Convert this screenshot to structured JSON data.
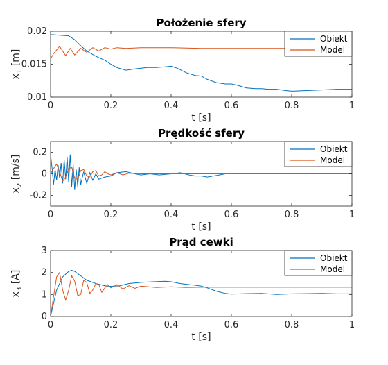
{
  "chart_data": [
    {
      "type": "line",
      "title": "Położenie sfery",
      "xlabel": "t [s]",
      "ylabel": "x",
      "ylabel_sub": "1",
      "ylabel_unit": " [m]",
      "xlim": [
        0,
        1
      ],
      "ylim": [
        0.01,
        0.02
      ],
      "xticks": [
        0,
        0.2,
        0.4,
        0.6,
        0.8,
        1
      ],
      "xtick_labels": [
        "0",
        "0.2",
        "0.4",
        "0.6",
        "0.8",
        "1"
      ],
      "yticks": [
        0.01,
        0.015,
        0.02
      ],
      "ytick_labels": [
        "0.01",
        "0.015",
        "0.02"
      ],
      "grid": false,
      "legend_position": "top-right",
      "series": [
        {
          "name": "Obiekt",
          "color": "#0072BD",
          "x": [
            0,
            0.03,
            0.06,
            0.08,
            0.1,
            0.12,
            0.15,
            0.18,
            0.2,
            0.22,
            0.25,
            0.28,
            0.32,
            0.35,
            0.38,
            0.4,
            0.42,
            0.45,
            0.48,
            0.5,
            0.52,
            0.55,
            0.58,
            0.6,
            0.62,
            0.65,
            0.68,
            0.7,
            0.72,
            0.75,
            0.78,
            0.8,
            0.85,
            0.9,
            0.95,
            1.0
          ],
          "y": [
            0.0195,
            0.0194,
            0.0193,
            0.0187,
            0.0178,
            0.017,
            0.0162,
            0.0156,
            0.015,
            0.0145,
            0.0141,
            0.0143,
            0.0145,
            0.0145,
            0.0146,
            0.0147,
            0.0144,
            0.0137,
            0.0133,
            0.0132,
            0.0127,
            0.0122,
            0.012,
            0.012,
            0.0118,
            0.0114,
            0.0113,
            0.0113,
            0.0112,
            0.0112,
            0.011,
            0.0109,
            0.011,
            0.0111,
            0.0112,
            0.0112
          ]
        },
        {
          "name": "Model",
          "color": "#D95319",
          "x": [
            0,
            0.01,
            0.03,
            0.05,
            0.065,
            0.08,
            0.1,
            0.12,
            0.14,
            0.16,
            0.18,
            0.2,
            0.22,
            0.25,
            0.3,
            0.4,
            0.5,
            0.6,
            0.8,
            1.0
          ],
          "y": [
            0.0158,
            0.0166,
            0.0177,
            0.0163,
            0.0174,
            0.0164,
            0.0174,
            0.0168,
            0.0175,
            0.017,
            0.0175,
            0.0173,
            0.0175,
            0.0174,
            0.0175,
            0.0175,
            0.0174,
            0.0174,
            0.0174,
            0.0174
          ]
        }
      ]
    },
    {
      "type": "line",
      "title": "Prędkość sfery",
      "xlabel": "t [s]",
      "ylabel": "x",
      "ylabel_sub": "2",
      "ylabel_unit": " [m/s]",
      "xlim": [
        0,
        1
      ],
      "ylim": [
        -0.3,
        0.3
      ],
      "xticks": [
        0,
        0.2,
        0.4,
        0.6,
        0.8,
        1
      ],
      "xtick_labels": [
        "0",
        "0.2",
        "0.4",
        "0.6",
        "0.8",
        "1"
      ],
      "yticks": [
        -0.2,
        0,
        0.2
      ],
      "ytick_labels": [
        "-0.2",
        "0",
        "0.2"
      ],
      "grid": false,
      "legend_position": "top-right",
      "series": [
        {
          "name": "Obiekt",
          "color": "#0072BD",
          "x": [
            0,
            0.005,
            0.01,
            0.015,
            0.02,
            0.025,
            0.03,
            0.035,
            0.04,
            0.045,
            0.05,
            0.055,
            0.06,
            0.065,
            0.07,
            0.075,
            0.08,
            0.085,
            0.09,
            0.095,
            0.1,
            0.11,
            0.12,
            0.13,
            0.14,
            0.15,
            0.16,
            0.18,
            0.2,
            0.22,
            0.25,
            0.28,
            0.3,
            0.33,
            0.36,
            0.4,
            0.43,
            0.46,
            0.48,
            0.5,
            0.52,
            0.54,
            0.56,
            0.58,
            0.6,
            0.65,
            0.7,
            0.75,
            0.8,
            0.85,
            0.9,
            0.95,
            1.0
          ],
          "y": [
            0.18,
            0.05,
            -0.1,
            0.04,
            -0.06,
            0.08,
            -0.04,
            0.1,
            -0.09,
            0.13,
            -0.05,
            0.16,
            -0.08,
            0.18,
            -0.12,
            0.09,
            -0.15,
            0.04,
            -0.12,
            0.06,
            -0.1,
            0.02,
            -0.09,
            0.01,
            -0.06,
            0.0,
            -0.05,
            -0.03,
            -0.02,
            0.01,
            0.02,
            0.0,
            -0.01,
            0.0,
            -0.01,
            0.0,
            0.01,
            -0.01,
            -0.02,
            -0.02,
            -0.03,
            -0.02,
            -0.01,
            0.0,
            0.0,
            0.0,
            0.0,
            0.0,
            0.0,
            0.0,
            0.0,
            0.0,
            0.0
          ]
        },
        {
          "name": "Model",
          "color": "#D95319",
          "x": [
            0,
            0.01,
            0.02,
            0.03,
            0.04,
            0.05,
            0.06,
            0.07,
            0.08,
            0.09,
            0.1,
            0.11,
            0.12,
            0.13,
            0.14,
            0.15,
            0.16,
            0.17,
            0.18,
            0.19,
            0.2,
            0.22,
            0.24,
            0.26,
            0.3,
            0.4,
            0.5,
            0.6,
            0.8,
            1.0
          ],
          "y": [
            0.0,
            0.05,
            0.09,
            0.02,
            -0.07,
            -0.03,
            0.05,
            0.06,
            -0.04,
            -0.05,
            0.03,
            0.04,
            -0.02,
            -0.03,
            0.02,
            0.03,
            -0.02,
            -0.01,
            0.02,
            0.0,
            -0.01,
            0.01,
            -0.01,
            0.005,
            0.0,
            0.0,
            0.0,
            0.0,
            0.0,
            0.0
          ]
        }
      ]
    },
    {
      "type": "line",
      "title": "Prąd cewki",
      "xlabel": "t [s]",
      "ylabel": "x",
      "ylabel_sub": "3",
      "ylabel_unit": " [A]",
      "xlim": [
        0,
        1
      ],
      "ylim": [
        0,
        3
      ],
      "xticks": [
        0,
        0.2,
        0.4,
        0.6,
        0.8,
        1
      ],
      "xtick_labels": [
        "0",
        "0.2",
        "0.4",
        "0.6",
        "0.8",
        "1"
      ],
      "yticks": [
        0,
        1,
        2,
        3
      ],
      "ytick_labels": [
        "0",
        "1",
        "2",
        "3"
      ],
      "grid": false,
      "legend_position": "top-right",
      "series": [
        {
          "name": "Obiekt",
          "color": "#0072BD",
          "x": [
            0,
            0.01,
            0.02,
            0.04,
            0.06,
            0.07,
            0.08,
            0.1,
            0.12,
            0.15,
            0.18,
            0.2,
            0.23,
            0.26,
            0.3,
            0.34,
            0.38,
            0.4,
            0.43,
            0.46,
            0.48,
            0.5,
            0.52,
            0.55,
            0.58,
            0.6,
            0.65,
            0.7,
            0.75,
            0.8,
            0.85,
            0.9,
            0.95,
            1.0
          ],
          "y": [
            0.0,
            0.6,
            1.2,
            1.8,
            2.05,
            2.1,
            2.05,
            1.85,
            1.65,
            1.5,
            1.4,
            1.37,
            1.4,
            1.5,
            1.55,
            1.58,
            1.6,
            1.58,
            1.5,
            1.45,
            1.42,
            1.38,
            1.3,
            1.15,
            1.05,
            1.02,
            1.04,
            1.05,
            1.0,
            1.03,
            1.04,
            1.05,
            1.03,
            1.03
          ]
        },
        {
          "name": "Model",
          "color": "#D95319",
          "x": [
            0,
            0.01,
            0.02,
            0.03,
            0.04,
            0.05,
            0.06,
            0.07,
            0.08,
            0.09,
            0.1,
            0.11,
            0.12,
            0.13,
            0.14,
            0.15,
            0.16,
            0.17,
            0.18,
            0.19,
            0.2,
            0.22,
            0.24,
            0.26,
            0.28,
            0.3,
            0.35,
            0.4,
            0.45,
            0.5,
            0.6,
            0.8,
            1.0
          ],
          "y": [
            0.0,
            0.9,
            1.8,
            2.0,
            1.2,
            0.75,
            1.2,
            1.85,
            1.6,
            0.95,
            1.0,
            1.65,
            1.55,
            1.05,
            1.2,
            1.5,
            1.45,
            1.1,
            1.3,
            1.45,
            1.3,
            1.45,
            1.25,
            1.4,
            1.28,
            1.38,
            1.32,
            1.35,
            1.32,
            1.33,
            1.33,
            1.33,
            1.33
          ]
        }
      ]
    }
  ]
}
